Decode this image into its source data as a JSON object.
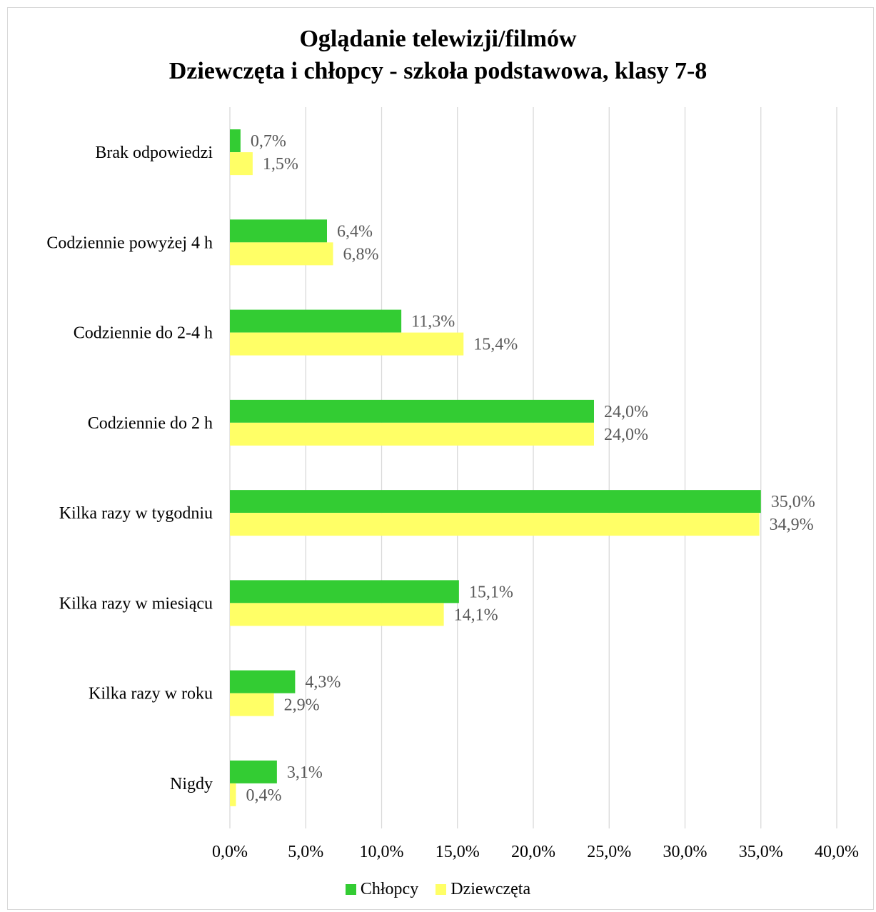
{
  "chart_data": {
    "type": "bar",
    "orientation": "horizontal",
    "title": "Oglądanie telewizji/filmów",
    "subtitle": "Dziewczęta i chłopcy - szkoła podstawowa, klasy 7-8",
    "categories": [
      "Brak odpowiedzi",
      "Codziennie powyżej 4 h",
      "Codziennie do 2-4 h",
      "Codziennie do 2 h",
      "Kilka razy w tygodniu",
      "Kilka razy w miesiącu",
      "Kilka razy w roku",
      "Nigdy"
    ],
    "series": [
      {
        "name": "Chłopcy",
        "color": "#33cc33",
        "values": [
          0.7,
          6.4,
          11.3,
          24.0,
          35.0,
          15.1,
          4.3,
          3.1
        ],
        "labels": [
          "0,7%",
          "6,4%",
          "11,3%",
          "24,0%",
          "35,0%",
          "15,1%",
          "4,3%",
          "3,1%"
        ]
      },
      {
        "name": "Dziewczęta",
        "color": "#ffff66",
        "values": [
          1.5,
          6.8,
          15.4,
          24.0,
          34.9,
          14.1,
          2.9,
          0.4
        ],
        "labels": [
          "1,5%",
          "6,8%",
          "15,4%",
          "24,0%",
          "34,9%",
          "14,1%",
          "2,9%",
          "0,4%"
        ]
      }
    ],
    "xlim": [
      0,
      40
    ],
    "xticks": [
      0,
      5,
      10,
      15,
      20,
      25,
      30,
      35,
      40
    ],
    "xtick_labels": [
      "0,0%",
      "5,0%",
      "10,0%",
      "15,0%",
      "20,0%",
      "25,0%",
      "30,0%",
      "35,0%",
      "40,0%"
    ],
    "grid": true,
    "legend_position": "bottom",
    "gridline_color": "#d9d9d9",
    "label_color": "#595959"
  }
}
